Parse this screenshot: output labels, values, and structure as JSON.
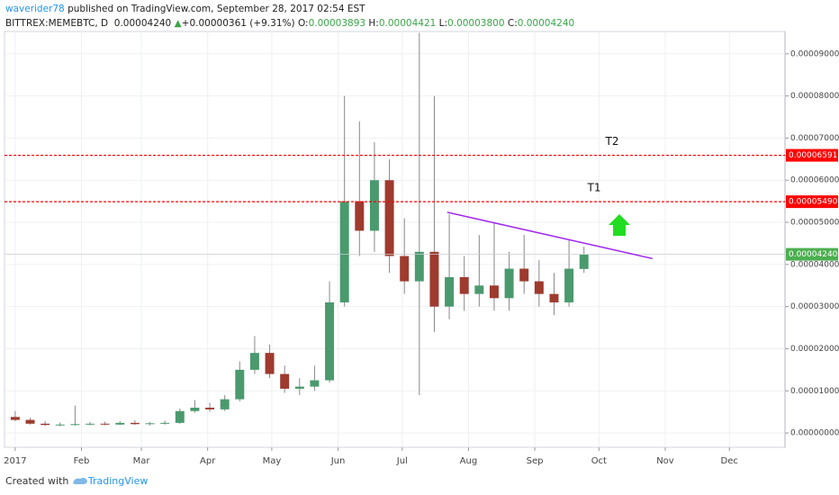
{
  "header": {
    "author": "waverider78",
    "published": "published on TradingView.com, September 28, 2017 02:54 EST",
    "symbol": "BITTREX:MEMEBTC, D",
    "last": "0.00004240",
    "arrow": "▲",
    "change": "+0.00000361 (+9.31%)",
    "ohlc": [
      [
        "O:",
        "0.00003893"
      ],
      [
        "H:",
        "0.00004421"
      ],
      [
        "L:",
        "0.00003800"
      ],
      [
        "C:",
        "0.00004240"
      ]
    ]
  },
  "footer": {
    "created": "Created with",
    "brand": "TradingView"
  },
  "chart_data": {
    "type": "candlestick",
    "up_color": "#4a9a6e",
    "down_color": "#9e3a2e",
    "grid": true,
    "x": [
      0,
      7,
      14,
      21,
      28,
      35,
      42,
      49,
      56,
      63,
      70,
      77,
      84,
      91,
      98,
      105,
      112,
      119,
      126,
      133,
      140,
      147,
      154,
      161,
      168,
      175,
      182,
      189,
      196,
      203,
      210,
      217,
      224,
      231,
      238,
      245,
      252,
      259,
      266
    ],
    "open": [
      3.8e-06,
      3.1e-06,
      2.2e-06,
      1.9e-06,
      2e-06,
      2.1e-06,
      2.2e-06,
      2e-06,
      2.4e-06,
      2.1e-06,
      2.3e-06,
      2.4e-06,
      5.2e-06,
      6e-06,
      5.6e-06,
      8e-06,
      1.5e-05,
      1.9e-05,
      1.4e-05,
      1.05e-05,
      1.1e-05,
      1.25e-05,
      3.1e-05,
      5.5e-05,
      4.8e-05,
      6e-05,
      4.2e-05,
      3.6e-05,
      4.3e-05,
      3e-05,
      3.7e-05,
      3.3e-05,
      3.5e-05,
      3.2e-05,
      3.9e-05,
      3.6e-05,
      3.3e-05,
      3.1e-05,
      3.893e-05
    ],
    "high": [
      5.2e-06,
      3.6e-06,
      2.8e-06,
      2.5e-06,
      6.5e-06,
      2.6e-06,
      2.7e-06,
      2.8e-06,
      3e-06,
      2.6e-06,
      2.9e-06,
      5.8e-06,
      7.8e-06,
      7.2e-06,
      9e-06,
      1.7e-05,
      2.3e-05,
      2.1e-05,
      1.6e-05,
      1.3e-05,
      1.6e-05,
      3.6e-05,
      8e-05,
      7.4e-05,
      6.9e-05,
      6.5e-05,
      5.1e-05,
      9.5e-05,
      8e-05,
      5.2e-05,
      4.2e-05,
      4.7e-05,
      5e-05,
      4.3e-05,
      4.7e-05,
      4.1e-05,
      3.8e-05,
      4.6e-05,
      4.421e-05
    ],
    "low": [
      2.8e-06,
      2e-06,
      1.7e-06,
      1.6e-06,
      1.7e-06,
      1.8e-06,
      1.8e-06,
      1.9e-06,
      1.9e-06,
      1.8e-06,
      2e-06,
      2.2e-06,
      4.8e-06,
      5e-06,
      5.2e-06,
      7.5e-06,
      1.4e-05,
      1.3e-05,
      9.5e-06,
      9e-06,
      1e-05,
      1.2e-05,
      3e-05,
      4.2e-05,
      4.3e-05,
      3.8e-05,
      3.3e-05,
      9e-06,
      2.4e-05,
      2.7e-05,
      2.9e-05,
      3e-05,
      2.9e-05,
      2.9e-05,
      3.3e-05,
      3e-05,
      2.8e-05,
      3e-05,
      3.8e-05
    ],
    "close": [
      3.1e-06,
      2.2e-06,
      1.9e-06,
      2e-06,
      2.1e-06,
      2.2e-06,
      2e-06,
      2.4e-06,
      2.1e-06,
      2.3e-06,
      2.4e-06,
      5.2e-06,
      6e-06,
      5.6e-06,
      8e-06,
      1.5e-05,
      1.9e-05,
      1.4e-05,
      1.05e-05,
      1.1e-05,
      1.25e-05,
      3.1e-05,
      5.5e-05,
      4.8e-05,
      6e-05,
      4.2e-05,
      3.6e-05,
      4.3e-05,
      3e-05,
      3.7e-05,
      3.3e-05,
      3.5e-05,
      3.2e-05,
      3.9e-05,
      3.6e-05,
      3.3e-05,
      3.1e-05,
      3.9e-05,
      4.24e-05
    ],
    "xlim": [
      -5,
      360
    ],
    "xticks": [
      {
        "value": 0,
        "label": "2017"
      },
      {
        "value": 31,
        "label": "Feb"
      },
      {
        "value": 59,
        "label": "Mar"
      },
      {
        "value": 90,
        "label": "Apr"
      },
      {
        "value": 120,
        "label": "May"
      },
      {
        "value": 151,
        "label": "Jun"
      },
      {
        "value": 181,
        "label": "Jul"
      },
      {
        "value": 212,
        "label": "Aug"
      },
      {
        "value": 243,
        "label": "Sep"
      },
      {
        "value": 273,
        "label": "Oct"
      },
      {
        "value": 304,
        "label": "Nov"
      },
      {
        "value": 334,
        "label": "Dec"
      }
    ],
    "ylim": [
      -3.4e-06,
      9.53e-05
    ],
    "yticks": [
      {
        "value": 0,
        "label": "0.00000000"
      },
      {
        "value": 1e-05,
        "label": "0.00001000"
      },
      {
        "value": 2e-05,
        "label": "0.00002000"
      },
      {
        "value": 3e-05,
        "label": "0.00003000"
      },
      {
        "value": 4e-05,
        "label": "0.00004000"
      },
      {
        "value": 5e-05,
        "label": "0.00005000"
      },
      {
        "value": 6e-05,
        "label": "0.00006000"
      },
      {
        "value": 7e-05,
        "label": "0.00007000"
      },
      {
        "value": 8e-05,
        "label": "0.00008000"
      },
      {
        "value": 9e-05,
        "label": "0.00009000"
      }
    ],
    "levels": [
      {
        "name": "T2",
        "value": 6.591e-05,
        "label": "0.00006591",
        "color": "#ff0000"
      },
      {
        "name": "T1",
        "value": 5.49e-05,
        "label": "0.00005490",
        "color": "#ff0000"
      }
    ],
    "last_price": {
      "value": 4.24e-05,
      "label": "0.00004240",
      "color": "#4caf50"
    },
    "trendline": {
      "x": [
        202,
        298
      ],
      "y": [
        5.24e-05,
        4.14e-05
      ],
      "color": "#a020f0"
    }
  }
}
